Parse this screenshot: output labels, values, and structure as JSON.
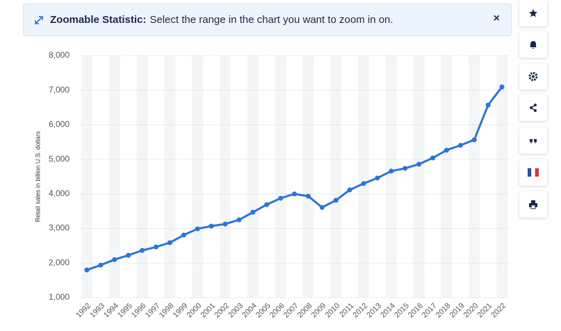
{
  "banner": {
    "title": "Zoomable Statistic:",
    "text": "Select the range in the chart you want to zoom in on."
  },
  "chart_data": {
    "type": "line",
    "y_label": "Retail sales in billion U.S. dollars",
    "categories": [
      "1992",
      "1993",
      "1994",
      "1995",
      "1996",
      "1997",
      "1998",
      "1999",
      "2000",
      "2001",
      "2002",
      "2003",
      "2004",
      "2005",
      "2006",
      "2007",
      "2008",
      "2009",
      "2010",
      "2011",
      "2012",
      "2013",
      "2014",
      "2015",
      "2016",
      "2017",
      "2018",
      "2019",
      "2020",
      "2021",
      "2022"
    ],
    "series": [
      {
        "name": "Retail sales",
        "color": "#2b74d8",
        "values": [
          1800,
          1940,
          2100,
          2225,
          2365,
          2465,
          2590,
          2810,
          2990,
          3070,
          3130,
          3250,
          3470,
          3690,
          3875,
          4000,
          3935,
          3610,
          3815,
          4115,
          4300,
          4460,
          4660,
          4740,
          4860,
          5040,
          5265,
          5405,
          5565,
          6570,
          7095
        ]
      }
    ],
    "ylim": [
      1000,
      8000
    ],
    "yticks": [
      {
        "value": 1000,
        "label": "1,000"
      },
      {
        "value": 2000,
        "label": "2,000"
      },
      {
        "value": 3000,
        "label": "3,000"
      },
      {
        "value": 4000,
        "label": "4,000"
      },
      {
        "value": 5000,
        "label": "5,000"
      },
      {
        "value": 6000,
        "label": "6,000"
      },
      {
        "value": 7000,
        "label": "7,000"
      },
      {
        "value": 8000,
        "label": "8,000"
      }
    ],
    "grid": true
  }
}
